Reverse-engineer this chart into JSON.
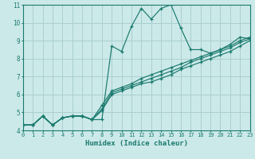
{
  "xlabel": "Humidex (Indice chaleur)",
  "ylabel": "",
  "xlim": [
    0,
    23
  ],
  "ylim": [
    4,
    11
  ],
  "yticks": [
    4,
    5,
    6,
    7,
    8,
    9,
    10,
    11
  ],
  "xticks": [
    0,
    1,
    2,
    3,
    4,
    5,
    6,
    7,
    8,
    9,
    10,
    11,
    12,
    13,
    14,
    15,
    16,
    17,
    18,
    19,
    20,
    21,
    22,
    23
  ],
  "bg_color": "#cce9e9",
  "grid_color": "#aacfcf",
  "line_color": "#1a7a6e",
  "line1_y": [
    4.3,
    4.3,
    4.8,
    4.3,
    4.7,
    4.8,
    4.8,
    4.6,
    4.6,
    8.7,
    8.4,
    9.8,
    10.8,
    10.2,
    10.8,
    11.0,
    9.7,
    8.5,
    8.5,
    8.3,
    8.5,
    8.8,
    9.2,
    9.1
  ],
  "line2_y": [
    4.3,
    4.3,
    4.8,
    4.3,
    4.7,
    4.8,
    4.8,
    4.6,
    5.1,
    6.0,
    6.2,
    6.4,
    6.6,
    6.7,
    6.9,
    7.1,
    7.4,
    7.6,
    7.8,
    8.0,
    8.2,
    8.4,
    8.7,
    9.0
  ],
  "line3_y": [
    4.3,
    4.3,
    4.8,
    4.3,
    4.7,
    4.8,
    4.8,
    4.6,
    5.2,
    6.1,
    6.3,
    6.5,
    6.7,
    6.9,
    7.1,
    7.3,
    7.5,
    7.8,
    8.0,
    8.2,
    8.4,
    8.6,
    8.9,
    9.1
  ],
  "line4_y": [
    4.3,
    4.3,
    4.8,
    4.3,
    4.7,
    4.8,
    4.8,
    4.6,
    5.4,
    6.2,
    6.4,
    6.6,
    6.9,
    7.1,
    7.3,
    7.5,
    7.7,
    7.9,
    8.1,
    8.3,
    8.5,
    8.7,
    9.0,
    9.2
  ]
}
